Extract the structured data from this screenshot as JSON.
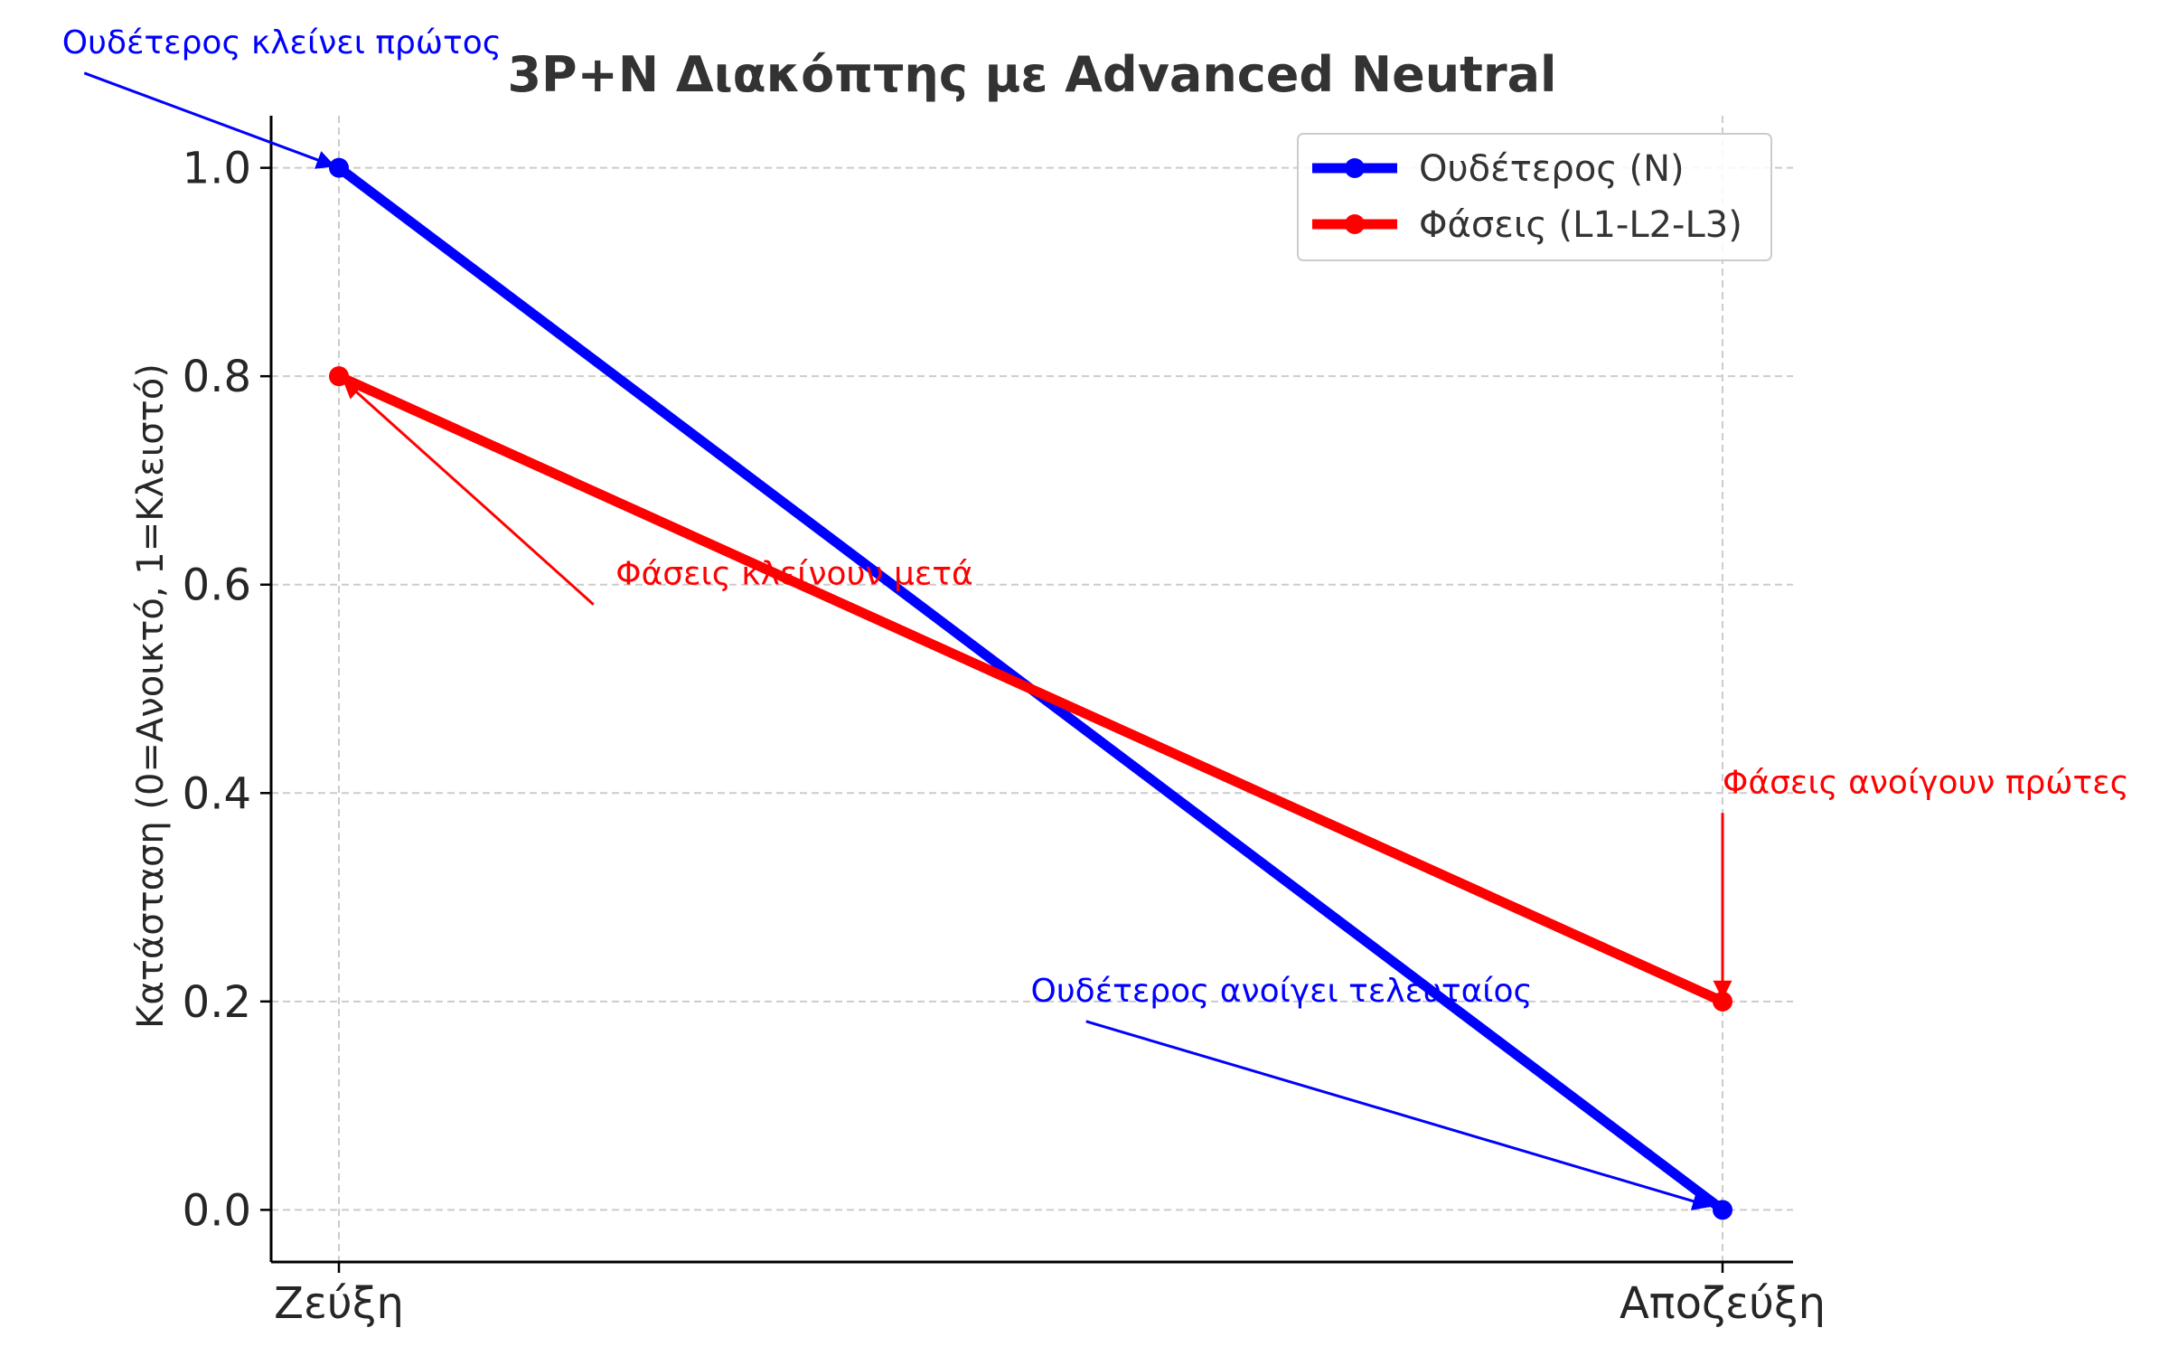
{
  "chart_data": {
    "type": "line",
    "title": "3P+N Διακόπτης με Advanced Neutral",
    "xlabel": "",
    "ylabel": "Κατάσταση (0=Ανοικτό, 1=Κλειστό)",
    "categories": [
      "Ζεύξη",
      "Αποζεύξη"
    ],
    "ylim": [
      -0.05,
      1.05
    ],
    "yticks": [
      0.0,
      0.2,
      0.4,
      0.6,
      0.8,
      1.0
    ],
    "ytick_labels": [
      "0.0",
      "0.2",
      "0.4",
      "0.6",
      "0.8",
      "1.0"
    ],
    "grid": true,
    "legend_position": "top-right",
    "series": [
      {
        "name": "Ουδέτερος (N)",
        "values": [
          1.0,
          0.0
        ],
        "color": "#0000ff"
      },
      {
        "name": "Φάσεις (L1-L2-L3)",
        "values": [
          0.8,
          0.2
        ],
        "color": "#ff0000"
      }
    ],
    "annotations": [
      {
        "text": "Ουδέτερος κλείνει πρώτος",
        "point": [
          0,
          1.0
        ],
        "text_pos": [
          -0.2,
          1.11
        ],
        "color": "#0000ff"
      },
      {
        "text": "Φάσεις κλείνουν μετά",
        "point": [
          0,
          0.8
        ],
        "text_pos": [
          0.2,
          0.6
        ],
        "color": "#ff0000"
      },
      {
        "text": "Ουδέτερος ανοίγει τελευταίος",
        "point": [
          1,
          0.0
        ],
        "text_pos": [
          0.5,
          0.2
        ],
        "color": "#0000ff"
      },
      {
        "text": "Φάσεις ανοίγουν πρώτες",
        "point": [
          1,
          0.2
        ],
        "text_pos": [
          1.0,
          0.4
        ],
        "color": "#ff0000"
      }
    ]
  }
}
